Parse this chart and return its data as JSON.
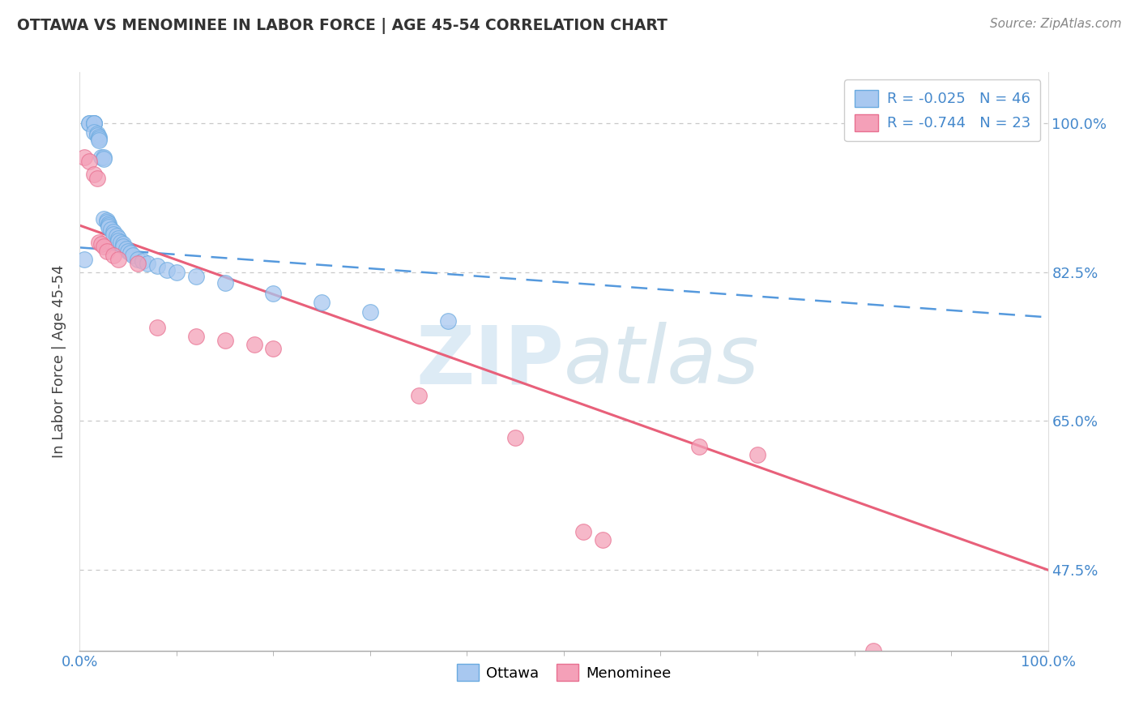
{
  "title": "OTTAWA VS MENOMINEE IN LABOR FORCE | AGE 45-54 CORRELATION CHART",
  "source_text": "Source: ZipAtlas.com",
  "ylabel": "In Labor Force | Age 45-54",
  "xlim": [
    0.0,
    1.0
  ],
  "ylim": [
    0.38,
    1.06
  ],
  "yticks": [
    0.475,
    0.65,
    0.825,
    1.0
  ],
  "ytick_labels": [
    "47.5%",
    "65.0%",
    "82.5%",
    "100.0%"
  ],
  "ottawa_color": "#a8c8f0",
  "menominee_color": "#f4a0b8",
  "ottawa_edge_color": "#6aaae0",
  "menominee_edge_color": "#e87090",
  "ottawa_trend_color": "#5599dd",
  "menominee_trend_color": "#e8607a",
  "ottawa_R": -0.025,
  "ottawa_N": 46,
  "menominee_R": -0.744,
  "menominee_N": 23,
  "watermark_zip": "ZIP",
  "watermark_atlas": "atlas",
  "background_color": "#ffffff",
  "grid_color": "#c8c8c8",
  "ottawa_x": [
    0.005,
    0.01,
    0.01,
    0.015,
    0.015,
    0.015,
    0.015,
    0.018,
    0.018,
    0.02,
    0.02,
    0.02,
    0.022,
    0.025,
    0.025,
    0.025,
    0.028,
    0.028,
    0.03,
    0.03,
    0.03,
    0.032,
    0.035,
    0.035,
    0.038,
    0.04,
    0.04,
    0.042,
    0.045,
    0.045,
    0.048,
    0.05,
    0.052,
    0.055,
    0.06,
    0.065,
    0.07,
    0.08,
    0.09,
    0.1,
    0.12,
    0.15,
    0.2,
    0.25,
    0.3,
    0.38
  ],
  "ottawa_y": [
    0.84,
    1.0,
    1.0,
    1.0,
    1.0,
    1.0,
    0.99,
    0.988,
    0.986,
    0.984,
    0.982,
    0.98,
    0.96,
    0.96,
    0.958,
    0.888,
    0.886,
    0.884,
    0.882,
    0.88,
    0.878,
    0.875,
    0.872,
    0.87,
    0.868,
    0.865,
    0.862,
    0.86,
    0.858,
    0.855,
    0.852,
    0.85,
    0.848,
    0.845,
    0.84,
    0.838,
    0.835,
    0.832,
    0.828,
    0.825,
    0.82,
    0.812,
    0.8,
    0.79,
    0.778,
    0.768
  ],
  "menominee_x": [
    0.005,
    0.01,
    0.015,
    0.018,
    0.02,
    0.022,
    0.025,
    0.028,
    0.035,
    0.04,
    0.06,
    0.08,
    0.12,
    0.15,
    0.18,
    0.2,
    0.35,
    0.45,
    0.52,
    0.54,
    0.64,
    0.7,
    0.82
  ],
  "menominee_y": [
    0.96,
    0.955,
    0.94,
    0.935,
    0.86,
    0.858,
    0.855,
    0.85,
    0.845,
    0.84,
    0.835,
    0.76,
    0.75,
    0.745,
    0.74,
    0.735,
    0.68,
    0.63,
    0.52,
    0.51,
    0.62,
    0.61,
    0.38
  ]
}
